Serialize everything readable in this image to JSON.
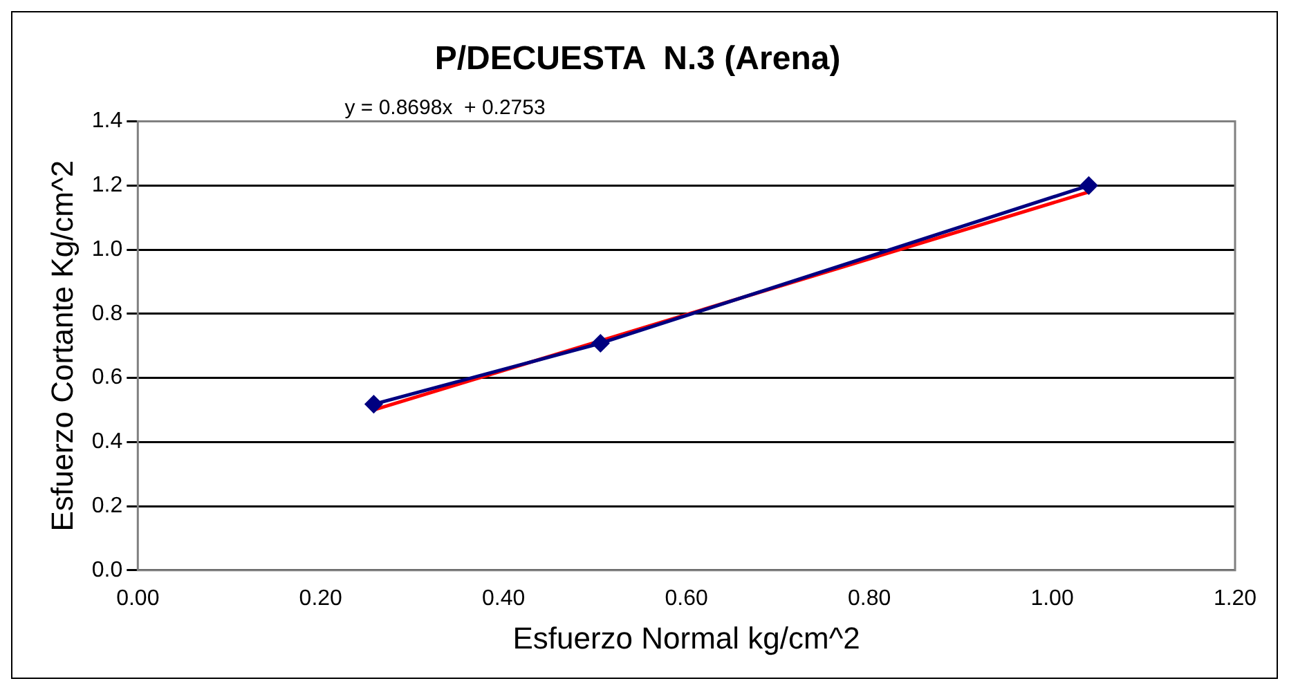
{
  "chart_data": {
    "type": "line",
    "title": "P/DECUESTA  N.3 (Arena)",
    "xlabel": "Esfuerzo Normal kg/cm^2",
    "ylabel": "Esfuerzo Cortante Kg/cm^2",
    "annotations": [
      "y = 0.8698x  + 0.2753"
    ],
    "series": [
      {
        "color": "#000080",
        "marker": "diamond",
        "x": [
          0.258,
          0.506,
          1.04
        ],
        "values": [
          0.518,
          0.708,
          1.2
        ]
      },
      {
        "color": "#ff0000",
        "marker": "none",
        "x": [
          0.258,
          1.04
        ],
        "values": [
          0.5,
          1.18
        ]
      }
    ],
    "xlim": [
      0,
      1.2
    ],
    "xticks": [
      {
        "value": 0,
        "label": "0.00"
      },
      {
        "value": 0.2,
        "label": "0.20"
      },
      {
        "value": 0.4,
        "label": "0.40"
      },
      {
        "value": 0.6,
        "label": "0.60"
      },
      {
        "value": 0.8,
        "label": "0.80"
      },
      {
        "value": 1,
        "label": "1.00"
      },
      {
        "value": 1.2,
        "label": "1.20"
      }
    ],
    "ylim": [
      0,
      1.4
    ],
    "yticks": [
      {
        "value": 0,
        "label": "0.0"
      },
      {
        "value": 0.2,
        "label": "0.2"
      },
      {
        "value": 0.4,
        "label": "0.4"
      },
      {
        "value": 0.6,
        "label": "0.6"
      },
      {
        "value": 0.8,
        "label": "0.8"
      },
      {
        "value": 1,
        "label": "1.0"
      },
      {
        "value": 1.2,
        "label": "1.2"
      },
      {
        "value": 1.4,
        "label": "1.4"
      }
    ],
    "grid": "y",
    "legend": false
  }
}
